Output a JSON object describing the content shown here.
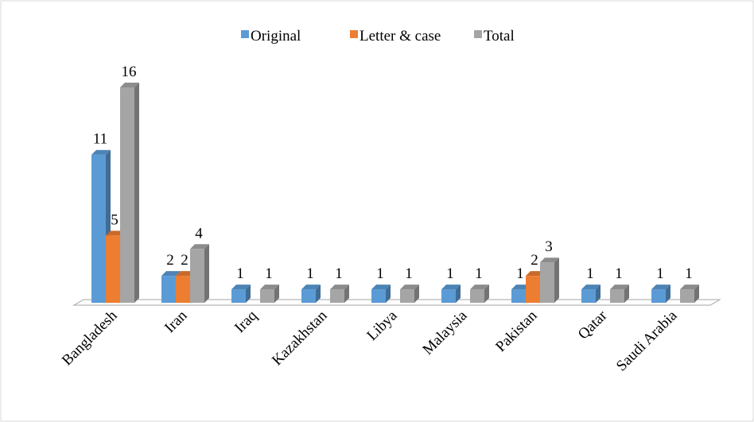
{
  "chart_data": {
    "type": "bar3d",
    "categories": [
      "Bangladesh",
      "Iran",
      "Iraq",
      "Kazakhstan",
      "Libya",
      "Malaysia",
      "Pakistan",
      "Qatar",
      "Saudi Arabia"
    ],
    "series": [
      {
        "name": "Original",
        "color": "#5b9bd5",
        "values": [
          11,
          2,
          1,
          1,
          1,
          1,
          1,
          1,
          1
        ]
      },
      {
        "name": "Letter & case",
        "color": "#ed7d31",
        "values": [
          5,
          2,
          null,
          null,
          null,
          null,
          2,
          null,
          null
        ]
      },
      {
        "name": "Total",
        "color": "#a5a5a5",
        "values": [
          16,
          4,
          1,
          1,
          1,
          1,
          3,
          1,
          1
        ]
      }
    ],
    "legend": "top"
  }
}
